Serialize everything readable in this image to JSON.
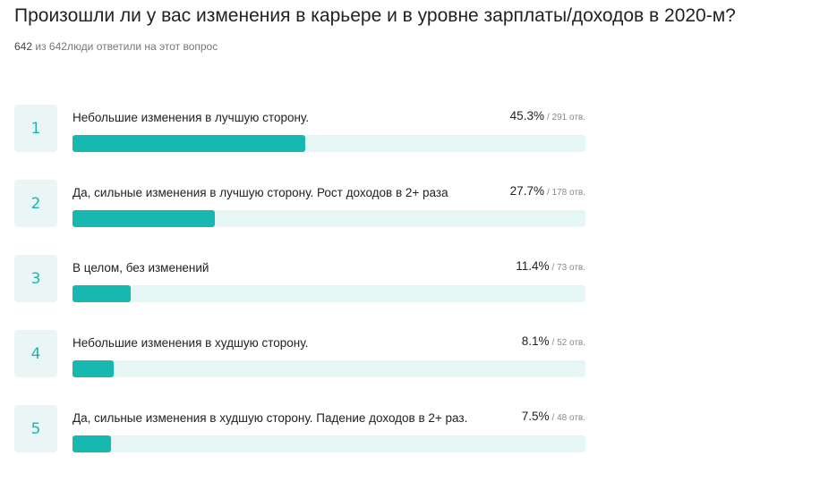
{
  "title": "Произошли ли у вас изменения в карьере и в уровне зарплаты/доходов в 2020-м?",
  "summary": {
    "answered": "642",
    "text": "из 642люди ответили на этот вопрос"
  },
  "options": [
    {
      "number": "1",
      "label": "Небольшие изменения в лучшую сторону.",
      "percent": 45.3,
      "percent_label": "45.3%",
      "votes_label": "/ 291 отв."
    },
    {
      "number": "2",
      "label": "Да, сильные изменения в лучшую сторону. Рост доходов в 2+ раза",
      "percent": 27.7,
      "percent_label": "27.7%",
      "votes_label": "/ 178 отв."
    },
    {
      "number": "3",
      "label": "В целом, без изменений",
      "percent": 11.4,
      "percent_label": "11.4%",
      "votes_label": "/ 73 отв."
    },
    {
      "number": "4",
      "label": "Небольшие изменения в худшую сторону.",
      "percent": 8.1,
      "percent_label": "8.1%",
      "votes_label": "/ 52 отв."
    },
    {
      "number": "5",
      "label": "Да, сильные изменения в худшую сторону. Падение доходов в 2+ раз.",
      "percent": 7.5,
      "percent_label": "7.5%",
      "votes_label": "/ 48 отв."
    }
  ]
}
